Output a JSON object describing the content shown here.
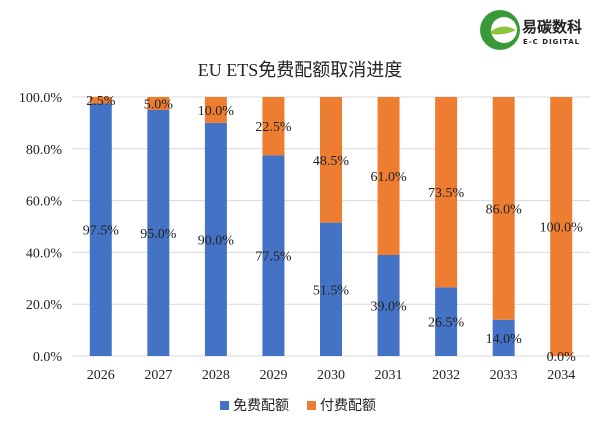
{
  "logo": {
    "name_cn": "易碳数科",
    "name_en": "E-C DIGITAL"
  },
  "chart_data": {
    "type": "bar",
    "stacked": true,
    "title": "EU ETS免费配额取消进度",
    "categories": [
      "2026",
      "2027",
      "2028",
      "2029",
      "2030",
      "2031",
      "2032",
      "2033",
      "2034"
    ],
    "series": [
      {
        "name": "免费配额",
        "color": "#4472C4",
        "values": [
          97.5,
          95.0,
          90.0,
          77.5,
          51.5,
          39.0,
          26.5,
          14.0,
          0.0
        ]
      },
      {
        "name": "付费配额",
        "color": "#ED7D31",
        "values": [
          2.5,
          5.0,
          10.0,
          22.5,
          48.5,
          61.0,
          73.5,
          86.0,
          100.0
        ]
      }
    ],
    "ylim": [
      0,
      100
    ],
    "yticks": [
      "0.0%",
      "20.0%",
      "40.0%",
      "60.0%",
      "80.0%",
      "100.0%"
    ],
    "grid": true,
    "legend": "bottom"
  }
}
